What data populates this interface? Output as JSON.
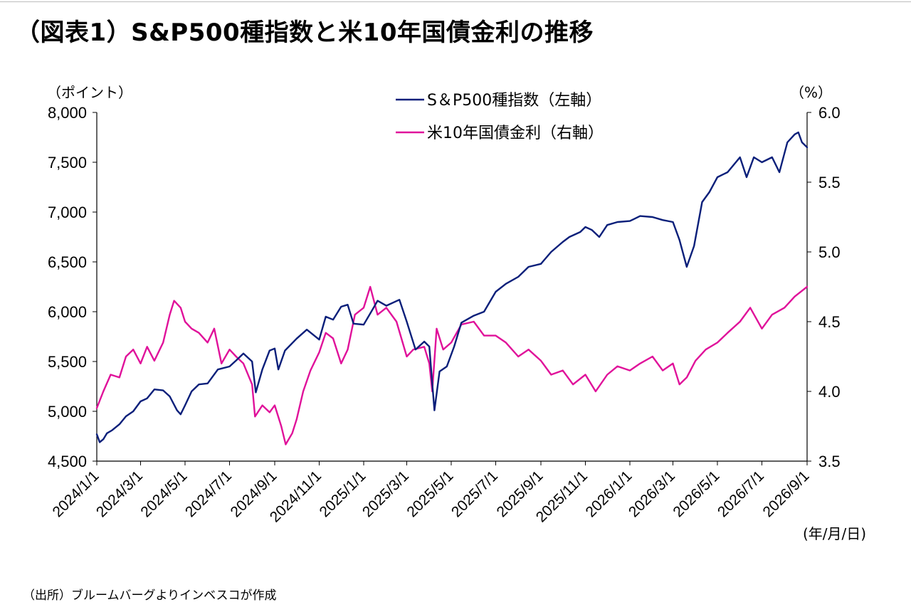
{
  "title": "（図表1）S&P500種指数と米10年国債金利の推移",
  "units": {
    "left": "（ポイント）",
    "right": "（%）",
    "x": "(年/月/日)"
  },
  "source": "（出所）ブルームバーグよりインベスコが作成",
  "colors": {
    "sp500": "#0a1f7a",
    "yield": "#e0119a"
  },
  "chart_data": {
    "type": "line",
    "title": "（図表1）S&P500種指数と米10年国債金利の推移",
    "x_tick_labels": [
      "2024/1/1",
      "2024/3/1",
      "2024/5/1",
      "2024/7/1",
      "2024/9/1",
      "2024/11/1",
      "2025/1/1",
      "2025/3/1",
      "2025/5/1",
      "2025/7/1",
      "2025/9/1",
      "2025/11/1",
      "2026/1/1",
      "2026/3/1",
      "2026/5/1",
      "2026/7/1",
      "2026/9/1"
    ],
    "x_range": [
      "2024/1/1",
      "2026/9/1"
    ],
    "left_axis": {
      "ylim": [
        4500,
        8000
      ],
      "ticks": [
        "4,500",
        "5,000",
        "5,500",
        "6,000",
        "6,500",
        "7,000",
        "7,500",
        "8,000"
      ],
      "tick_values": [
        4500,
        5000,
        5500,
        6000,
        6500,
        7000,
        7500,
        8000
      ]
    },
    "right_axis": {
      "ylim": [
        3.5,
        6.0
      ],
      "ticks": [
        "3.5",
        "4.0",
        "4.5",
        "5.0",
        "5.5",
        "6.0"
      ],
      "tick_values": [
        3.5,
        4.0,
        4.5,
        5.0,
        5.5,
        6.0
      ]
    },
    "legend_position": "top-center",
    "series": [
      {
        "name": "S＆P500種指数（左軸）",
        "axis": "left",
        "x": [
          "2024/1/1",
          "2024/1/5",
          "2024/1/10",
          "2024/1/15",
          "2024/1/22",
          "2024/2/1",
          "2024/2/10",
          "2024/2/20",
          "2024/3/1",
          "2024/3/10",
          "2024/3/20",
          "2024/4/1",
          "2024/4/10",
          "2024/4/20",
          "2024/4/25",
          "2024/5/1",
          "2024/5/10",
          "2024/5/20",
          "2024/6/1",
          "2024/6/15",
          "2024/7/1",
          "2024/7/10",
          "2024/7/20",
          "2024/8/1",
          "2024/8/6",
          "2024/8/15",
          "2024/8/25",
          "2024/9/1",
          "2024/9/6",
          "2024/9/15",
          "2024/10/1",
          "2024/10/15",
          "2024/11/1",
          "2024/11/10",
          "2024/11/20",
          "2024/12/1",
          "2024/12/10",
          "2024/12/18",
          "2025/1/1",
          "2025/1/13",
          "2025/1/20",
          "2025/2/1",
          "2025/2/19",
          "2025/3/1",
          "2025/3/13",
          "2025/3/25",
          "2025/4/1",
          "2025/4/8",
          "2025/4/15",
          "2025/4/25",
          "2025/5/5",
          "2025/5/15",
          "2025/6/1",
          "2025/6/15",
          "2025/7/1",
          "2025/7/15",
          "2025/8/1",
          "2025/8/15",
          "2025/9/1",
          "2025/9/15",
          "2025/10/1",
          "2025/10/10",
          "2025/10/25",
          "2025/11/1",
          "2025/11/10",
          "2025/11/20",
          "2025/12/1",
          "2025/12/15",
          "2026/1/1",
          "2026/1/15",
          "2026/2/1",
          "2026/2/15",
          "2026/3/1",
          "2026/3/10",
          "2026/3/20",
          "2026/3/30",
          "2026/4/10",
          "2026/4/20",
          "2026/5/1",
          "2026/5/15",
          "2026/6/1",
          "2026/6/10",
          "2026/6/20",
          "2026/7/1",
          "2026/7/15",
          "2026/7/25",
          "2026/8/5",
          "2026/8/15",
          "2026/8/20",
          "2026/8/25",
          "2026/9/1"
        ],
        "values": [
          4770,
          4690,
          4720,
          4780,
          4810,
          4870,
          4950,
          5000,
          5100,
          5130,
          5220,
          5210,
          5150,
          5010,
          4970,
          5060,
          5200,
          5270,
          5280,
          5420,
          5450,
          5510,
          5580,
          5500,
          5190,
          5420,
          5610,
          5630,
          5420,
          5610,
          5730,
          5820,
          5720,
          5950,
          5920,
          6050,
          6070,
          5880,
          5870,
          6020,
          6110,
          6060,
          6120,
          5900,
          5620,
          5700,
          5650,
          5010,
          5400,
          5450,
          5650,
          5890,
          5960,
          6000,
          6200,
          6280,
          6350,
          6450,
          6480,
          6600,
          6700,
          6750,
          6800,
          6850,
          6820,
          6750,
          6870,
          6900,
          6910,
          6960,
          6950,
          6920,
          6900,
          6720,
          6450,
          6660,
          7100,
          7200,
          7350,
          7400,
          7550,
          7350,
          7550,
          7500,
          7550,
          7400,
          7700,
          7780,
          7800,
          7700,
          7650
        ]
      },
      {
        "name": "米10年国債金利（右軸）",
        "axis": "right",
        "x": [
          "2024/1/1",
          "2024/1/10",
          "2024/1/20",
          "2024/2/1",
          "2024/2/10",
          "2024/2/20",
          "2024/3/1",
          "2024/3/10",
          "2024/3/20",
          "2024/4/1",
          "2024/4/10",
          "2024/4/16",
          "2024/4/25",
          "2024/5/1",
          "2024/5/10",
          "2024/5/20",
          "2024/6/1",
          "2024/6/10",
          "2024/6/20",
          "2024/7/1",
          "2024/7/10",
          "2024/7/20",
          "2024/8/1",
          "2024/8/5",
          "2024/8/15",
          "2024/8/25",
          "2024/9/1",
          "2024/9/10",
          "2024/9/16",
          "2024/9/25",
          "2024/10/1",
          "2024/10/10",
          "2024/10/20",
          "2024/11/1",
          "2024/11/10",
          "2024/11/20",
          "2024/12/1",
          "2024/12/10",
          "2024/12/20",
          "2025/1/1",
          "2025/1/10",
          "2025/1/20",
          "2025/2/1",
          "2025/2/15",
          "2025/3/1",
          "2025/3/10",
          "2025/3/25",
          "2025/4/1",
          "2025/4/5",
          "2025/4/11",
          "2025/4/20",
          "2025/5/1",
          "2025/5/15",
          "2025/6/1",
          "2025/6/15",
          "2025/7/1",
          "2025/7/15",
          "2025/8/1",
          "2025/8/15",
          "2025/9/1",
          "2025/9/15",
          "2025/10/1",
          "2025/10/15",
          "2025/11/1",
          "2025/11/15",
          "2025/12/1",
          "2025/12/15",
          "2026/1/1",
          "2026/1/15",
          "2026/2/1",
          "2026/2/15",
          "2026/3/1",
          "2026/3/10",
          "2026/3/20",
          "2026/4/1",
          "2026/4/15",
          "2026/5/1",
          "2026/5/15",
          "2026/6/1",
          "2026/6/15",
          "2026/7/1",
          "2026/7/15",
          "2026/8/1",
          "2026/8/15",
          "2026/9/1"
        ],
        "values": [
          3.88,
          4.0,
          4.12,
          4.1,
          4.25,
          4.3,
          4.2,
          4.32,
          4.22,
          4.35,
          4.55,
          4.65,
          4.6,
          4.5,
          4.45,
          4.42,
          4.35,
          4.45,
          4.2,
          4.3,
          4.25,
          4.2,
          4.05,
          3.82,
          3.9,
          3.85,
          3.9,
          3.75,
          3.62,
          3.7,
          3.8,
          4.0,
          4.15,
          4.28,
          4.42,
          4.38,
          4.2,
          4.3,
          4.55,
          4.6,
          4.75,
          4.55,
          4.6,
          4.5,
          4.25,
          4.3,
          4.32,
          4.2,
          4.0,
          4.45,
          4.3,
          4.35,
          4.48,
          4.5,
          4.4,
          4.4,
          4.35,
          4.25,
          4.3,
          4.22,
          4.12,
          4.15,
          4.05,
          4.12,
          4.0,
          4.12,
          4.18,
          4.15,
          4.2,
          4.25,
          4.15,
          4.2,
          4.05,
          4.1,
          4.22,
          4.3,
          4.35,
          4.42,
          4.5,
          4.6,
          4.45,
          4.55,
          4.6,
          4.68,
          4.75
        ]
      }
    ]
  }
}
